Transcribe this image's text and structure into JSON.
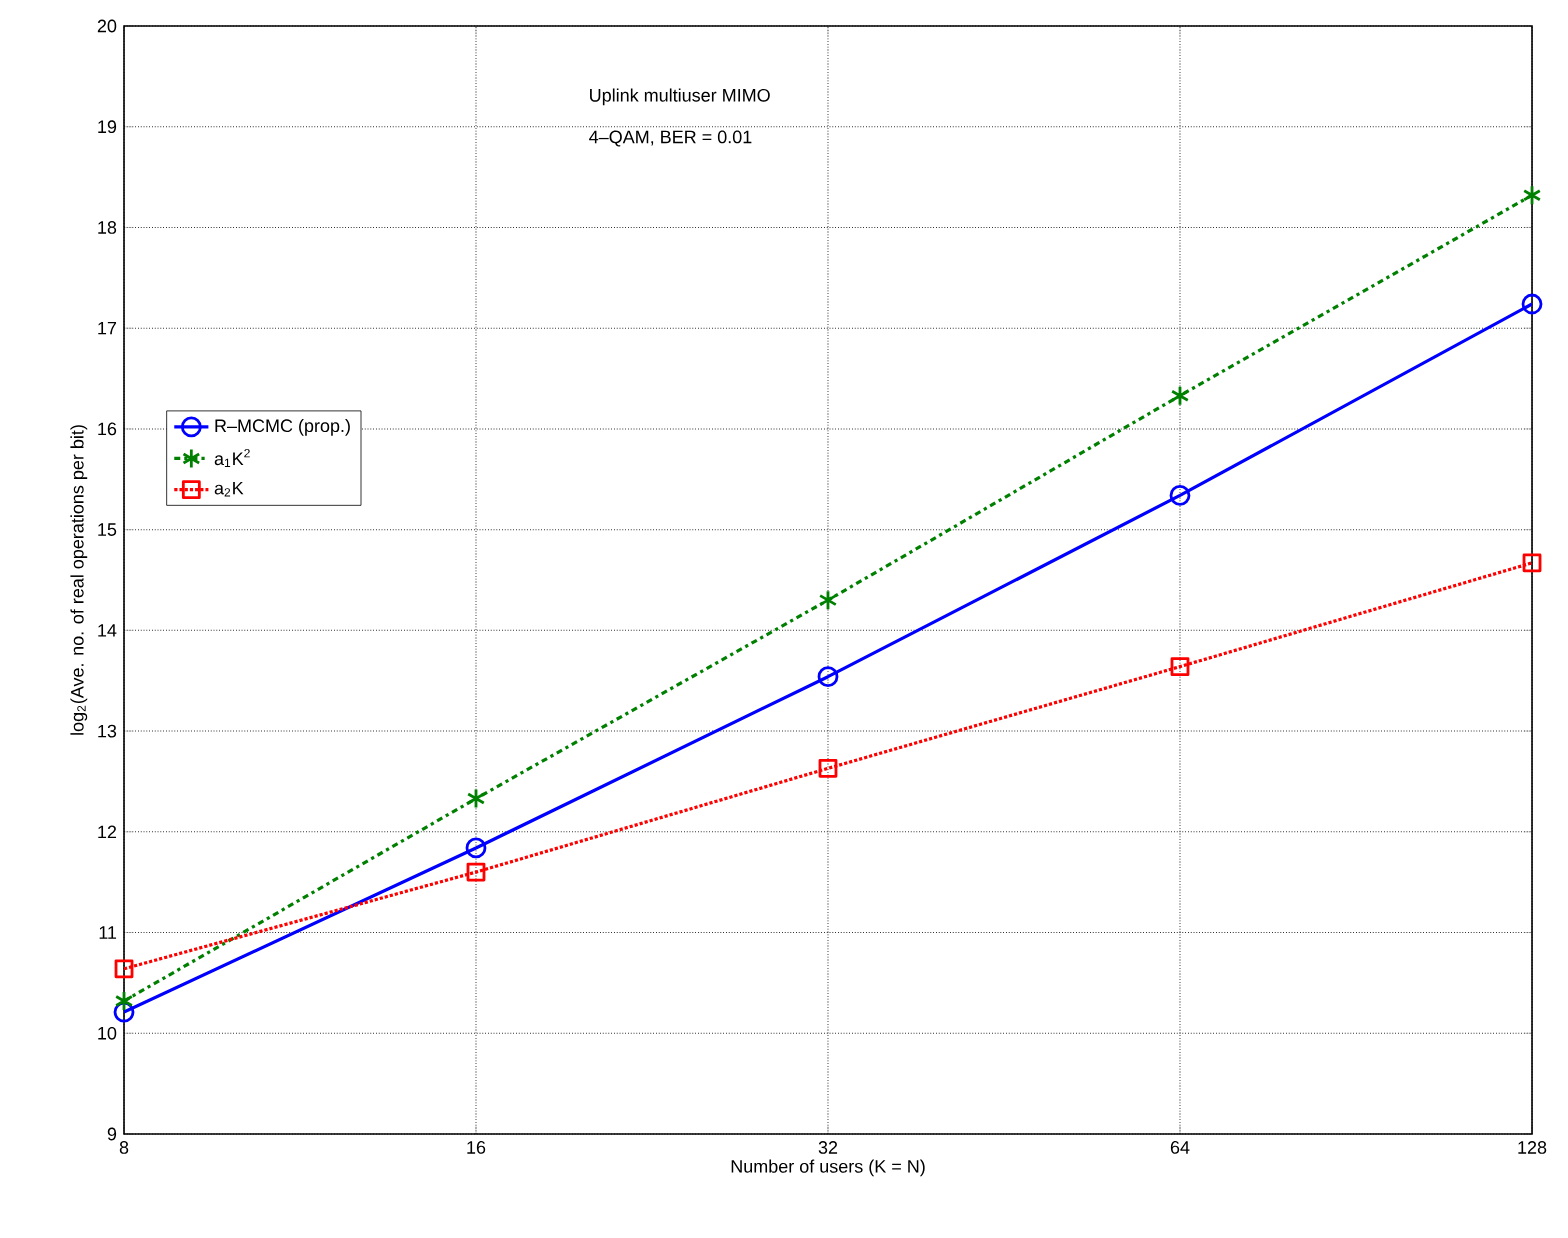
{
  "chart_data": {
    "type": "line",
    "xlabel": "Number of users (K = N)",
    "ylabel": "log$_{2}$(Ave. no. of real operations per bit)",
    "annotations": [
      "Uplink multiuser MIMO",
      "4–QAM, BER = 0.01"
    ],
    "x": [
      8,
      16,
      32,
      64,
      128
    ],
    "log": "x",
    "xlim": [
      8,
      128
    ],
    "xticks": [
      8,
      16,
      32,
      64,
      128
    ],
    "ylim": [
      9,
      20
    ],
    "yticks": [
      9,
      10,
      11,
      12,
      13,
      14,
      15,
      16,
      17,
      18,
      19,
      20
    ],
    "grid": true,
    "legend": "left",
    "series": [
      {
        "name": "R–MCMC (prop.)",
        "color": "#0000ff",
        "marker": "circle",
        "line_style": "solid",
        "values": [
          10.21,
          11.84,
          13.54,
          15.34,
          17.24
        ]
      },
      {
        "name": "a$_{1}$K$^{2}$",
        "color": "#008000",
        "marker": "cross",
        "line_style": "dashed",
        "values": [
          10.32,
          12.33,
          14.3,
          16.33,
          18.32
        ]
      },
      {
        "name": "a$_{2}$K",
        "color": "#ff0000",
        "marker": "square",
        "line_style": "dotted",
        "values": [
          10.64,
          11.6,
          12.63,
          13.64,
          14.67
        ]
      }
    ]
  }
}
